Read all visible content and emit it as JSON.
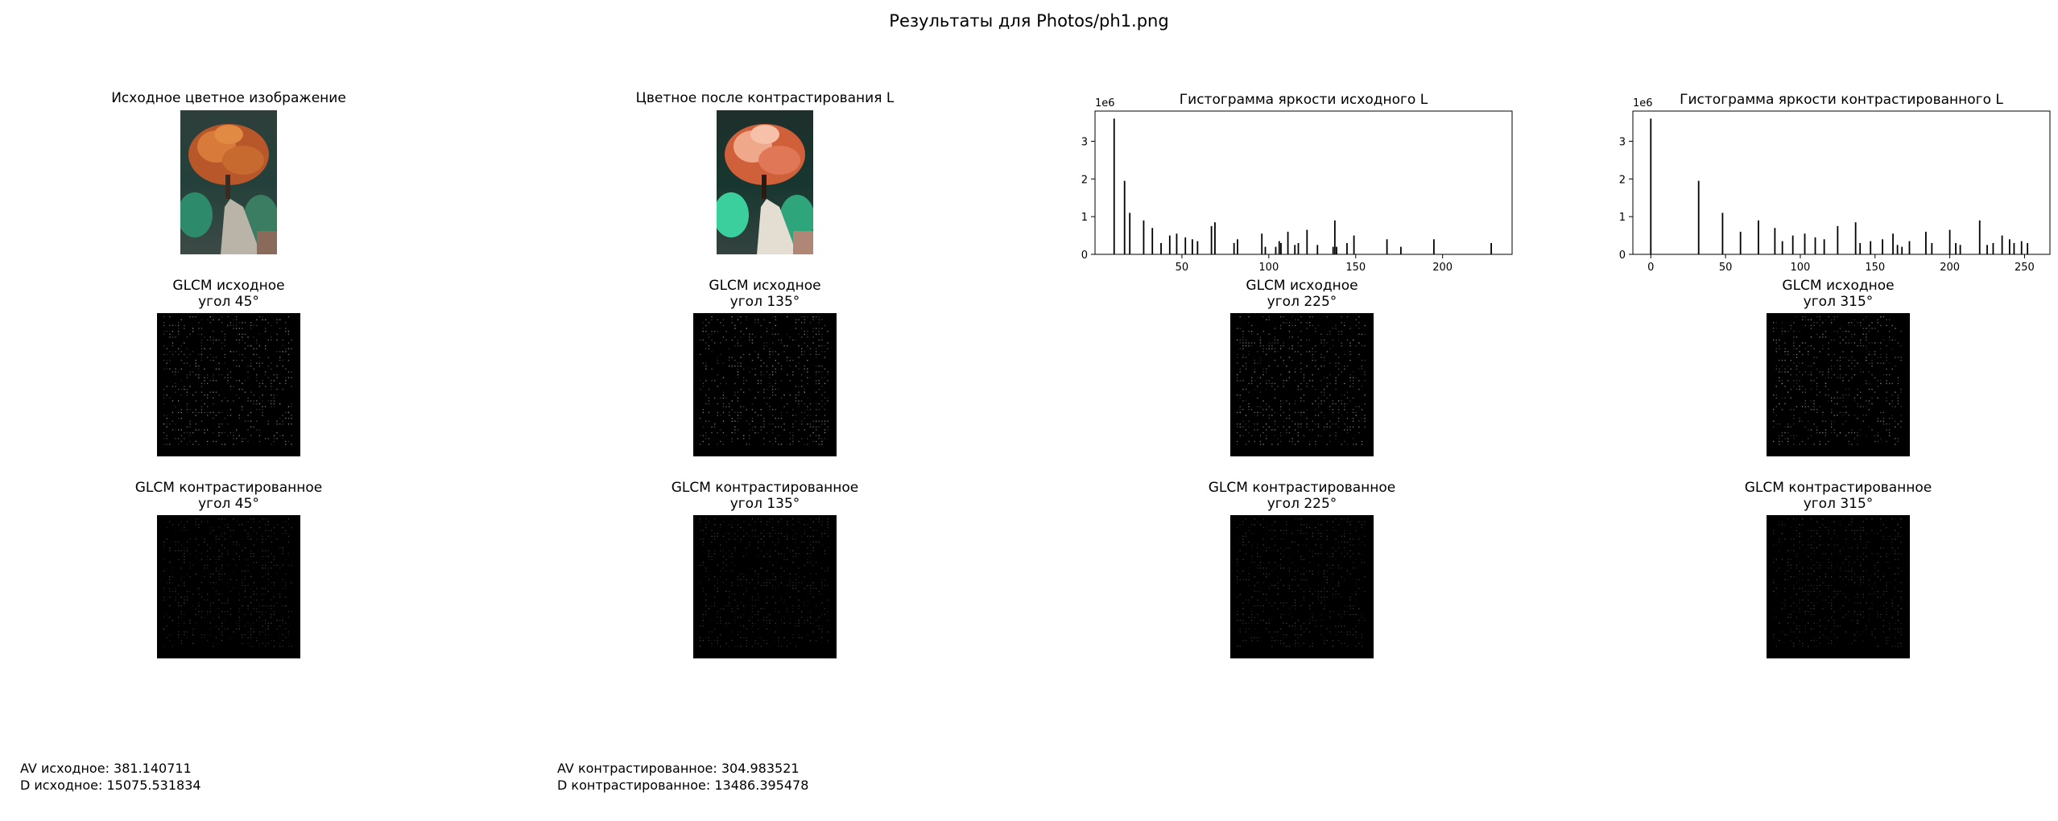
{
  "figure": {
    "suptitle": "Результаты для Photos/ph1.png"
  },
  "images": {
    "original_title": "Исходное цветное изображение",
    "contrasted_title": "Цветное после контрастирования L"
  },
  "chart_data": [
    {
      "type": "bar",
      "title": "Гистограмма яркости исходного L",
      "offset_text": "1e6",
      "xlabel": "",
      "ylabel": "",
      "xlim": [
        0,
        240
      ],
      "ylim": [
        0,
        3.8
      ],
      "xticks": [
        50,
        100,
        150,
        200
      ],
      "yticks": [
        0,
        1,
        2,
        3
      ],
      "x": [
        11,
        17,
        20,
        28,
        33,
        38,
        43,
        47,
        52,
        56,
        59,
        67,
        69,
        80,
        82,
        96,
        98,
        104,
        106,
        107,
        111,
        115,
        117,
        122,
        128,
        137,
        138,
        139,
        145,
        149,
        168,
        176,
        195,
        228
      ],
      "values": [
        3.6,
        1.95,
        1.1,
        0.9,
        0.7,
        0.3,
        0.5,
        0.55,
        0.45,
        0.4,
        0.35,
        0.75,
        0.85,
        0.3,
        0.4,
        0.55,
        0.2,
        0.2,
        0.35,
        0.3,
        0.6,
        0.25,
        0.3,
        0.65,
        0.25,
        0.2,
        0.9,
        0.2,
        0.3,
        0.5,
        0.4,
        0.2,
        0.4,
        0.3
      ]
    },
    {
      "type": "bar",
      "title": "Гистограмма яркости контрастированного L",
      "offset_text": "1e6",
      "xlabel": "",
      "ylabel": "",
      "xlim": [
        -12,
        267
      ],
      "ylim": [
        0,
        3.8
      ],
      "xticks": [
        0,
        50,
        100,
        150,
        200,
        250
      ],
      "yticks": [
        0,
        1,
        2,
        3
      ],
      "x": [
        0,
        32,
        48,
        60,
        72,
        83,
        88,
        95,
        103,
        110,
        116,
        125,
        137,
        140,
        147,
        155,
        162,
        165,
        168,
        173,
        184,
        188,
        200,
        204,
        207,
        220,
        225,
        229,
        235,
        240,
        243,
        248,
        252
      ],
      "values": [
        3.6,
        1.95,
        1.1,
        0.6,
        0.9,
        0.7,
        0.35,
        0.5,
        0.55,
        0.45,
        0.4,
        0.75,
        0.85,
        0.3,
        0.35,
        0.4,
        0.55,
        0.25,
        0.2,
        0.35,
        0.6,
        0.3,
        0.65,
        0.3,
        0.25,
        0.9,
        0.25,
        0.3,
        0.5,
        0.4,
        0.3,
        0.35,
        0.3
      ]
    }
  ],
  "glcm_rows": [
    {
      "prefix": "GLCM исходное",
      "angles": [
        "угол 45°",
        "угол 135°",
        "угол 225°",
        "угол 315°"
      ],
      "brightness": 0.9
    },
    {
      "prefix": "GLCM контрастированное",
      "angles": [
        "угол 45°",
        "угол 135°",
        "угол 225°",
        "угол 315°"
      ],
      "brightness": 0.45
    }
  ],
  "stats": {
    "av_original": "AV исходное: 381.140711",
    "d_original": "D исходное: 15075.531834",
    "av_contrasted": "AV контрастированное: 304.983521",
    "d_contrasted": "D контрастированное: 13486.395478"
  }
}
